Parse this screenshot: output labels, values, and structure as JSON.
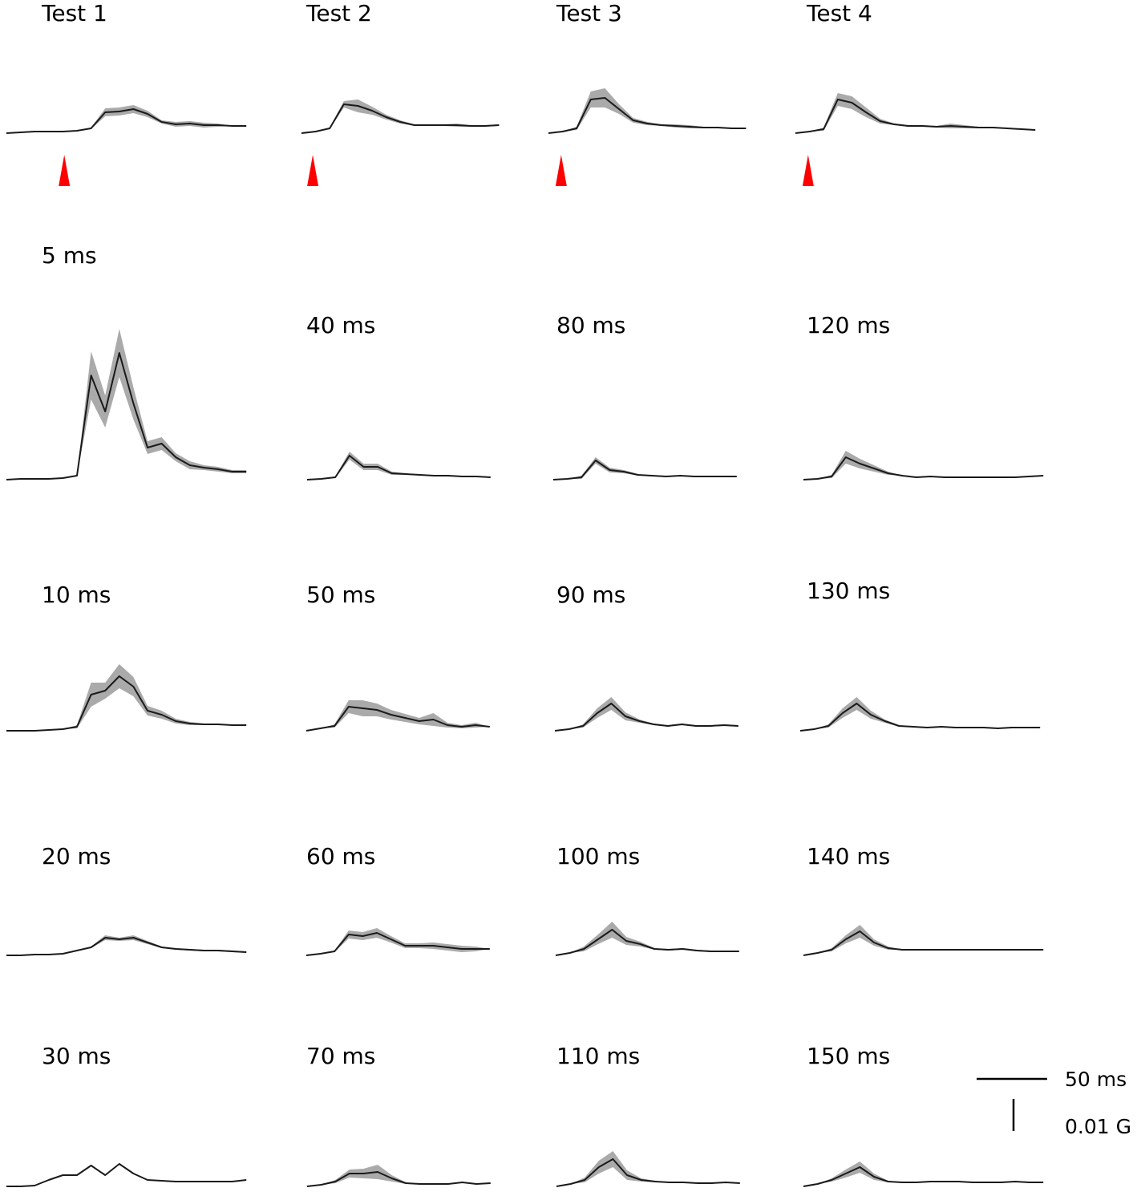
{
  "chart_data": [
    {
      "type": "line",
      "title": "Test 1",
      "color": "#1a1a1a",
      "band_color": "#aaaaaa",
      "marker_x": 41,
      "marker_color": "#ff0000",
      "x": [
        0,
        10,
        20,
        30,
        40,
        50,
        60,
        70,
        80,
        90,
        100,
        110,
        120,
        130,
        140,
        150,
        160,
        170
      ],
      "values": [
        0,
        0.00025,
        0.0005,
        0.0005,
        0.0005,
        0.00075,
        0.0015,
        0.0065,
        0.00675,
        0.0075,
        0.006,
        0.0035,
        0.00275,
        0.003,
        0.0025,
        0.0025,
        0.00225,
        0.00225
      ],
      "error": [
        0,
        0,
        0,
        0,
        0,
        0,
        0.00025,
        0.00125,
        0.00125,
        0.00125,
        0.001,
        0.0005,
        0.00075,
        0.00075,
        0.00075,
        0.0005,
        0,
        0
      ]
    },
    {
      "type": "line",
      "title": "Test 2",
      "color": "#1a1a1a",
      "band_color": "#aaaaaa",
      "marker_x": 8,
      "marker_color": "#ff0000",
      "x": [
        0,
        10,
        20,
        30,
        40,
        50,
        60,
        70,
        80,
        90,
        100,
        110,
        120,
        130,
        140
      ],
      "values": [
        0,
        0.0005,
        0.0015,
        0.009,
        0.0085,
        0.007,
        0.005,
        0.0035,
        0.0025,
        0.0025,
        0.0025,
        0.0025,
        0.00225,
        0.00225,
        0.0025
      ],
      "error": [
        0,
        0,
        0.00025,
        0.001,
        0.002,
        0.00125,
        0.00075,
        0.0005,
        0.00025,
        0.00025,
        0.00025,
        0.0005,
        0.00025,
        0.00025,
        0.00025
      ]
    },
    {
      "type": "line",
      "title": "Test 3",
      "color": "#1a1a1a",
      "band_color": "#aaaaaa",
      "marker_x": 9,
      "marker_color": "#ff0000",
      "x": [
        0,
        10,
        20,
        30,
        40,
        50,
        60,
        70,
        80,
        90,
        100,
        110,
        120,
        130,
        140
      ],
      "values": [
        0,
        0.0005,
        0.0015,
        0.0105,
        0.011,
        0.0075,
        0.004,
        0.003,
        0.0025,
        0.00225,
        0.002,
        0.00175,
        0.00175,
        0.0015,
        0.0015
      ],
      "error": [
        0,
        0,
        0.0005,
        0.0025,
        0.003,
        0.0015,
        0.00075,
        0.0005,
        0.00025,
        0.0005,
        0.0005,
        0.00025,
        0.00025,
        0,
        0
      ]
    },
    {
      "type": "line",
      "title": "Test 4",
      "color": "#1a1a1a",
      "band_color": "#aaaaaa",
      "marker_x": 9,
      "marker_color": "#ff0000",
      "x": [
        0,
        10,
        20,
        30,
        40,
        50,
        60,
        70,
        80,
        90,
        100,
        110,
        120,
        130,
        140,
        150,
        160,
        170
      ],
      "values": [
        0,
        0.0005,
        0.00125,
        0.0105,
        0.0095,
        0.0065,
        0.00375,
        0.00275,
        0.00225,
        0.00225,
        0.002,
        0.00225,
        0.002,
        0.00175,
        0.00175,
        0.0015,
        0.00125,
        0.001
      ],
      "error": [
        0,
        0,
        0.0005,
        0.002,
        0.002,
        0.0015,
        0.00075,
        0.00025,
        0.00025,
        0.00025,
        0.00025,
        0.00075,
        0.0005,
        0.00025,
        0.00025,
        0,
        0,
        0
      ]
    },
    {
      "type": "line",
      "title": "5 ms",
      "color": "#1a1a1a",
      "band_color": "#aaaaaa",
      "x": [
        0,
        10,
        20,
        30,
        40,
        50,
        60,
        70,
        80,
        90,
        100,
        110,
        120,
        130,
        140,
        150,
        160,
        170
      ],
      "values": [
        0,
        0.00025,
        0.00025,
        0.00025,
        0.0005,
        0.00125,
        0.0325,
        0.02125,
        0.0395,
        0.02375,
        0.01,
        0.01125,
        0.007,
        0.0045,
        0.00375,
        0.00325,
        0.0025,
        0.0025
      ],
      "error": [
        0,
        0,
        0,
        0,
        0,
        0,
        0.0075,
        0.005,
        0.0075,
        0.005,
        0.002,
        0.002,
        0.00125,
        0.00125,
        0.00075,
        0.00075,
        0.0005,
        0.0005
      ]
    },
    {
      "type": "line",
      "title": "40 ms",
      "color": "#1a1a1a",
      "band_color": "#aaaaaa",
      "x": [
        0,
        10,
        20,
        30,
        40,
        50,
        60,
        70,
        80,
        90,
        100,
        110,
        120,
        130
      ],
      "values": [
        0,
        0.00025,
        0.00075,
        0.0075,
        0.004,
        0.004,
        0.002,
        0.00175,
        0.0015,
        0.00125,
        0.00125,
        0.001,
        0.001,
        0.00075
      ],
      "error": [
        0,
        0,
        0.00025,
        0.00125,
        0.001,
        0.001,
        0.0005,
        0.00025,
        0,
        0,
        0,
        0,
        0,
        0
      ]
    },
    {
      "type": "line",
      "title": "80 ms",
      "color": "#1a1a1a",
      "band_color": "#aaaaaa",
      "x": [
        0,
        10,
        20,
        30,
        40,
        50,
        60,
        70,
        80,
        90,
        100,
        110,
        120,
        130
      ],
      "values": [
        0,
        0.00025,
        0.00075,
        0.006,
        0.003,
        0.0025,
        0.0015,
        0.00125,
        0.001,
        0.00125,
        0.001,
        0.001,
        0.001,
        0.001
      ],
      "error": [
        0,
        0,
        0.0005,
        0.001,
        0.00075,
        0.0005,
        0.00025,
        0,
        0,
        0,
        0,
        0,
        0,
        0
      ]
    },
    {
      "type": "line",
      "title": "120 ms",
      "color": "#1a1a1a",
      "band_color": "#aaaaaa",
      "x": [
        0,
        10,
        20,
        30,
        40,
        50,
        60,
        70,
        80,
        90,
        100,
        110,
        120,
        130,
        140,
        150,
        160,
        170
      ],
      "values": [
        0,
        0.00025,
        0.001,
        0.007,
        0.005,
        0.0035,
        0.002,
        0.00125,
        0.00075,
        0.001,
        0.00075,
        0.00075,
        0.00075,
        0.00075,
        0.00075,
        0.00075,
        0.001,
        0.00125
      ],
      "error": [
        0,
        0,
        0.0005,
        0.002,
        0.0015,
        0.001,
        0.0005,
        0,
        0,
        0,
        0,
        0,
        0,
        0,
        0,
        0,
        0,
        0
      ]
    },
    {
      "type": "line",
      "title": "10 ms",
      "color": "#1a1a1a",
      "band_color": "#aaaaaa",
      "x": [
        0,
        10,
        20,
        30,
        40,
        50,
        60,
        70,
        80,
        90,
        100,
        110,
        120,
        130,
        140,
        150,
        160,
        170
      ],
      "values": [
        0,
        0,
        0,
        0.00025,
        0.0005,
        0.00125,
        0.01125,
        0.0125,
        0.017,
        0.01375,
        0.00625,
        0.005,
        0.003,
        0.00225,
        0.002,
        0.002,
        0.00175,
        0.00175
      ],
      "error": [
        0,
        0,
        0,
        0,
        0,
        0.0005,
        0.00375,
        0.0025,
        0.00375,
        0.003,
        0.0015,
        0.00125,
        0.00075,
        0.0005,
        0.00025,
        0,
        0,
        0
      ]
    },
    {
      "type": "line",
      "title": "50 ms",
      "color": "#1a1a1a",
      "band_color": "#aaaaaa",
      "x": [
        0,
        10,
        20,
        30,
        40,
        50,
        60,
        70,
        80,
        90,
        100,
        110,
        120,
        130
      ],
      "values": [
        0,
        0.00075,
        0.0015,
        0.0075,
        0.007,
        0.0065,
        0.005,
        0.004,
        0.003,
        0.0035,
        0.00175,
        0.00125,
        0.00175,
        0.00125
      ],
      "error": [
        0,
        0,
        0.0005,
        0.002,
        0.0025,
        0.002,
        0.0015,
        0.00125,
        0.001,
        0.002,
        0.00075,
        0.0005,
        0.00075,
        0
      ]
    },
    {
      "type": "line",
      "title": "90 ms",
      "color": "#1a1a1a",
      "band_color": "#aaaaaa",
      "x": [
        0,
        10,
        20,
        30,
        40,
        50,
        60,
        70,
        80,
        90,
        100,
        110,
        120,
        130
      ],
      "values": [
        0,
        0.0005,
        0.0015,
        0.0055,
        0.0085,
        0.0045,
        0.003,
        0.002,
        0.0015,
        0.002,
        0.0015,
        0.0015,
        0.00175,
        0.0015
      ],
      "error": [
        0,
        0,
        0.0005,
        0.0015,
        0.002,
        0.00125,
        0.0005,
        0.00025,
        0.00025,
        0.00025,
        0.00025,
        0.00025,
        0.00025,
        0.00025
      ]
    },
    {
      "type": "line",
      "title": "130 ms",
      "color": "#1a1a1a",
      "band_color": "#aaaaaa",
      "x": [
        0,
        10,
        20,
        30,
        40,
        50,
        60,
        70,
        80,
        90,
        100,
        110,
        120,
        130,
        140,
        150,
        160,
        170
      ],
      "values": [
        0,
        0.0005,
        0.0015,
        0.0055,
        0.0085,
        0.005,
        0.003,
        0.0015,
        0.00125,
        0.001,
        0.00125,
        0.001,
        0.001,
        0.001,
        0.00075,
        0.001,
        0.001,
        0.001
      ],
      "error": [
        0,
        0,
        0.0005,
        0.0015,
        0.002,
        0.00125,
        0.0005,
        0.00025,
        0,
        0,
        0,
        0,
        0,
        0,
        0,
        0,
        0,
        0
      ]
    },
    {
      "type": "line",
      "title": "20 ms",
      "color": "#1a1a1a",
      "band_color": "#aaaaaa",
      "x": [
        0,
        10,
        20,
        30,
        40,
        50,
        60,
        70,
        80,
        90,
        100,
        110,
        120,
        130,
        140,
        150,
        160,
        170
      ],
      "values": [
        0,
        0,
        0.00025,
        0.00025,
        0.0005,
        0.0015,
        0.0025,
        0.0055,
        0.005,
        0.0055,
        0.004,
        0.0025,
        0.002,
        0.00175,
        0.0015,
        0.0015,
        0.00125,
        0.001
      ],
      "error": [
        0,
        0,
        0,
        0,
        0,
        0,
        0.00025,
        0.00075,
        0.0005,
        0.00075,
        0.0005,
        0.00025,
        0.00025,
        0.00025,
        0.00025,
        0.00025,
        0.00025,
        0.00025
      ]
    },
    {
      "type": "line",
      "title": "60 ms",
      "color": "#1a1a1a",
      "band_color": "#aaaaaa",
      "x": [
        0,
        10,
        20,
        30,
        40,
        50,
        60,
        70,
        80,
        90,
        100,
        110,
        120,
        130
      ],
      "values": [
        0,
        0.0005,
        0.00125,
        0.0065,
        0.006,
        0.007,
        0.005,
        0.003,
        0.003,
        0.003,
        0.0025,
        0.002,
        0.002,
        0.002
      ],
      "error": [
        0,
        0,
        0.00025,
        0.00125,
        0.00125,
        0.0015,
        0.001,
        0.00075,
        0.00075,
        0.001,
        0.001,
        0.001,
        0.00075,
        0
      ]
    },
    {
      "type": "line",
      "title": "100 ms",
      "color": "#1a1a1a",
      "band_color": "#aaaaaa",
      "x": [
        0,
        10,
        20,
        30,
        40,
        50,
        60,
        70,
        80,
        90,
        100,
        110,
        120,
        130
      ],
      "values": [
        0,
        0.00075,
        0.002,
        0.005,
        0.008,
        0.0045,
        0.0035,
        0.002,
        0.00175,
        0.002,
        0.0015,
        0.00125,
        0.00125,
        0.00125
      ],
      "error": [
        0,
        0,
        0.00075,
        0.0015,
        0.0025,
        0.00125,
        0.00075,
        0.00025,
        0.00025,
        0.00025,
        0.00025,
        0.00025,
        0.00025,
        0.00025
      ]
    },
    {
      "type": "line",
      "title": "140 ms",
      "color": "#1a1a1a",
      "band_color": "#aaaaaa",
      "x": [
        0,
        10,
        20,
        30,
        40,
        50,
        60,
        70,
        80,
        90,
        100,
        110,
        120,
        130,
        140,
        150,
        160,
        170
      ],
      "values": [
        0,
        0.00075,
        0.00175,
        0.005,
        0.0075,
        0.004,
        0.00225,
        0.00175,
        0.00175,
        0.00175,
        0.00175,
        0.00175,
        0.00175,
        0.00175,
        0.00175,
        0.00175,
        0.00175,
        0.00175
      ],
      "error": [
        0,
        0,
        0.0005,
        0.00125,
        0.002,
        0.001,
        0.0005,
        0,
        0,
        0,
        0,
        0,
        0,
        0,
        0,
        0,
        0,
        0
      ]
    },
    {
      "type": "line",
      "title": "30 ms",
      "color": "#1a1a1a",
      "x": [
        0,
        10,
        20,
        30,
        40,
        50,
        60,
        70,
        80,
        90,
        100,
        110,
        120,
        130,
        140,
        150,
        160,
        170
      ],
      "values": [
        0,
        0,
        0.00025,
        0.002,
        0.0035,
        0.0035,
        0.0065,
        0.0035,
        0.007,
        0.004,
        0.002,
        0.00175,
        0.0015,
        0.0015,
        0.0015,
        0.0015,
        0.0015,
        0.002
      ]
    },
    {
      "type": "line",
      "title": "70 ms",
      "color": "#1a1a1a",
      "band_color": "#aaaaaa",
      "x": [
        0,
        10,
        20,
        30,
        40,
        50,
        60,
        70,
        80,
        90,
        100,
        110,
        120,
        130
      ],
      "values": [
        0,
        0.0005,
        0.0015,
        0.004,
        0.004,
        0.0045,
        0.0025,
        0.001,
        0.00075,
        0.00075,
        0.00075,
        0.00125,
        0.00075,
        0.001
      ],
      "error": [
        0,
        0,
        0.0005,
        0.00125,
        0.0015,
        0.00225,
        0.001,
        0.00025,
        0,
        0,
        0,
        0,
        0,
        0
      ]
    },
    {
      "type": "line",
      "title": "110 ms",
      "color": "#1a1a1a",
      "band_color": "#aaaaaa",
      "x": [
        0,
        10,
        20,
        30,
        40,
        50,
        60,
        70,
        80,
        90,
        100,
        110,
        120,
        130
      ],
      "values": [
        0,
        0.00075,
        0.002,
        0.006,
        0.0085,
        0.0035,
        0.002,
        0.0015,
        0.00125,
        0.00125,
        0.001,
        0.001,
        0.00125,
        0.001
      ],
      "error": [
        0,
        0,
        0.00075,
        0.002,
        0.0025,
        0.0015,
        0.0005,
        0.00025,
        0,
        0,
        0,
        0,
        0,
        0
      ]
    },
    {
      "type": "line",
      "title": "150 ms",
      "color": "#1a1a1a",
      "band_color": "#aaaaaa",
      "x": [
        0,
        10,
        20,
        30,
        40,
        50,
        60,
        70,
        80,
        90,
        100,
        110,
        120,
        130,
        140,
        150,
        160,
        170
      ],
      "values": [
        0,
        0.00075,
        0.002,
        0.004,
        0.006,
        0.003,
        0.0015,
        0.00125,
        0.00125,
        0.0015,
        0.0015,
        0.0015,
        0.00125,
        0.00125,
        0.00125,
        0.0015,
        0.00125,
        0.00125
      ],
      "error": [
        0,
        0,
        0.0005,
        0.00125,
        0.00175,
        0.001,
        0.00025,
        0,
        0,
        0,
        0,
        0,
        0,
        0,
        0,
        0,
        0,
        0
      ]
    }
  ],
  "scale_bar": {
    "x_label": "50 ms",
    "x_value": 50,
    "y_label": "0.01 G",
    "y_value": 0.01
  }
}
